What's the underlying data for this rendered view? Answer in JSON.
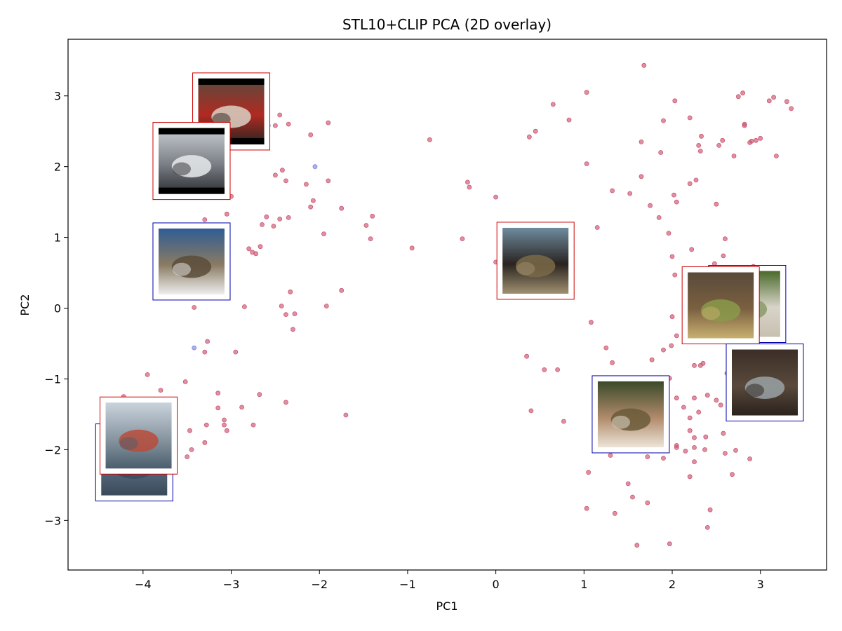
{
  "chart_data": {
    "type": "scatter",
    "title": "STL10+CLIP PCA (2D overlay)",
    "xlabel": "PC1",
    "ylabel": "PC2",
    "xlim": [
      -4.85,
      3.75
    ],
    "ylim": [
      -3.7,
      3.8
    ],
    "xticks": [
      -4,
      -3,
      -2,
      -1,
      0,
      1,
      2,
      3
    ],
    "yticks": [
      -3,
      -2,
      -1,
      0,
      1,
      2,
      3
    ],
    "grid": false,
    "colors": {
      "red": "#cc5470",
      "blue": "#7f86d8",
      "red_frame": "#cc0000",
      "blue_frame": "#0000aa"
    },
    "series": [
      {
        "color": "red",
        "points": [
          [
            -2.45,
            2.73
          ],
          [
            -2.35,
            2.6
          ],
          [
            -2.1,
            2.45
          ],
          [
            -1.9,
            2.62
          ],
          [
            -2.5,
            1.88
          ],
          [
            -2.42,
            1.95
          ],
          [
            -2.38,
            1.8
          ],
          [
            -2.15,
            1.75
          ],
          [
            -2.07,
            1.52
          ],
          [
            -2.1,
            1.43
          ],
          [
            -1.75,
            1.41
          ],
          [
            -1.9,
            1.8
          ],
          [
            -1.4,
            1.3
          ],
          [
            -1.47,
            1.17
          ],
          [
            -1.42,
            0.98
          ],
          [
            -1.95,
            1.05
          ],
          [
            -2.35,
            1.28
          ],
          [
            -2.45,
            1.26
          ],
          [
            -2.52,
            1.16
          ],
          [
            -2.6,
            1.29
          ],
          [
            -2.65,
            1.18
          ],
          [
            -2.8,
            0.84
          ],
          [
            -2.76,
            0.79
          ],
          [
            -2.72,
            0.77
          ],
          [
            -2.67,
            0.87
          ],
          [
            -2.85,
            0.02
          ],
          [
            -3.05,
            1.33
          ],
          [
            -3.3,
            1.25
          ],
          [
            -3.0,
            1.58
          ],
          [
            -3.7,
            1.67
          ],
          [
            -3.05,
            0.39
          ],
          [
            -3.42,
            0.01
          ],
          [
            -2.33,
            0.23
          ],
          [
            -2.43,
            0.03
          ],
          [
            -2.38,
            -0.09
          ],
          [
            -2.28,
            -0.08
          ],
          [
            -2.3,
            -0.3
          ],
          [
            -1.92,
            0.03
          ],
          [
            -1.75,
            0.25
          ],
          [
            -3.27,
            -0.47
          ],
          [
            -3.3,
            -0.62
          ],
          [
            -2.95,
            -0.62
          ],
          [
            -3.15,
            -1.2
          ],
          [
            -3.15,
            -1.41
          ],
          [
            -3.28,
            -1.65
          ],
          [
            -3.08,
            -1.58
          ],
          [
            -3.08,
            -1.65
          ],
          [
            -3.05,
            -1.73
          ],
          [
            -2.88,
            -1.4
          ],
          [
            -2.68,
            -1.22
          ],
          [
            -2.75,
            -1.65
          ],
          [
            -2.38,
            -1.33
          ],
          [
            -3.3,
            -1.9
          ],
          [
            -3.45,
            -2.0
          ],
          [
            -3.5,
            -2.1
          ],
          [
            -3.47,
            -1.73
          ],
          [
            -3.52,
            -1.04
          ],
          [
            -3.8,
            -1.16
          ],
          [
            -3.95,
            -0.94
          ],
          [
            -4.22,
            -1.25
          ],
          [
            -1.7,
            -1.51
          ],
          [
            -0.75,
            2.38
          ],
          [
            -0.95,
            0.85
          ],
          [
            -0.38,
            0.98
          ],
          [
            0.0,
            1.57
          ],
          [
            0.0,
            0.65
          ],
          [
            -0.32,
            1.78
          ],
          [
            -0.3,
            1.71
          ],
          [
            0.35,
            -0.68
          ],
          [
            0.4,
            -1.45
          ],
          [
            0.55,
            -0.87
          ],
          [
            0.7,
            -0.87
          ],
          [
            0.77,
            -1.6
          ],
          [
            0.38,
            2.42
          ],
          [
            0.45,
            2.5
          ],
          [
            0.65,
            2.88
          ],
          [
            0.83,
            2.66
          ],
          [
            1.03,
            3.05
          ],
          [
            1.03,
            2.04
          ],
          [
            1.15,
            1.14
          ],
          [
            1.08,
            -0.2
          ],
          [
            1.25,
            -0.56
          ],
          [
            1.32,
            -0.77
          ],
          [
            1.3,
            -2.08
          ],
          [
            1.35,
            -2.9
          ],
          [
            1.05,
            -2.32
          ],
          [
            1.03,
            -2.83
          ],
          [
            1.5,
            -2.48
          ],
          [
            1.55,
            -2.67
          ],
          [
            1.6,
            -3.35
          ],
          [
            1.72,
            -2.75
          ],
          [
            1.97,
            -3.33
          ],
          [
            1.68,
            3.43
          ],
          [
            1.65,
            2.35
          ],
          [
            1.65,
            1.86
          ],
          [
            1.75,
            1.45
          ],
          [
            1.32,
            1.66
          ],
          [
            1.52,
            1.62
          ],
          [
            1.85,
            1.28
          ],
          [
            1.87,
            2.2
          ],
          [
            1.9,
            2.65
          ],
          [
            2.03,
            2.93
          ],
          [
            1.96,
            1.06
          ],
          [
            2.0,
            0.73
          ],
          [
            2.02,
            1.6
          ],
          [
            2.05,
            1.5
          ],
          [
            2.03,
            0.47
          ],
          [
            2.0,
            -0.12
          ],
          [
            2.05,
            -0.39
          ],
          [
            1.99,
            -0.53
          ],
          [
            1.9,
            -0.59
          ],
          [
            1.97,
            -0.99
          ],
          [
            1.92,
            -1.17
          ],
          [
            2.05,
            -1.27
          ],
          [
            1.77,
            -0.73
          ],
          [
            1.72,
            -2.1
          ],
          [
            1.9,
            -2.12
          ],
          [
            2.05,
            -1.94
          ],
          [
            2.05,
            -1.97
          ],
          [
            2.13,
            -1.4
          ],
          [
            2.2,
            -1.55
          ],
          [
            2.2,
            -1.73
          ],
          [
            2.25,
            -1.83
          ],
          [
            2.25,
            -1.97
          ],
          [
            2.25,
            -2.17
          ],
          [
            2.2,
            -2.38
          ],
          [
            2.15,
            -2.02
          ],
          [
            2.2,
            2.69
          ],
          [
            2.2,
            1.76
          ],
          [
            2.27,
            1.81
          ],
          [
            2.33,
            2.43
          ],
          [
            2.3,
            2.3
          ],
          [
            2.32,
            2.22
          ],
          [
            2.22,
            0.83
          ],
          [
            2.35,
            -0.78
          ],
          [
            2.25,
            -0.81
          ],
          [
            2.32,
            -0.81
          ],
          [
            2.3,
            -1.47
          ],
          [
            2.25,
            -1.27
          ],
          [
            2.4,
            -1.23
          ],
          [
            2.38,
            -1.82
          ],
          [
            2.37,
            -2.0
          ],
          [
            2.4,
            -3.1
          ],
          [
            2.43,
            -2.85
          ],
          [
            2.5,
            -1.3
          ],
          [
            2.55,
            -1.37
          ],
          [
            2.58,
            -1.77
          ],
          [
            2.6,
            -2.05
          ],
          [
            2.53,
            2.3
          ],
          [
            2.57,
            2.37
          ],
          [
            2.5,
            1.47
          ],
          [
            2.6,
            0.98
          ],
          [
            2.58,
            0.74
          ],
          [
            2.48,
            0.63
          ],
          [
            2.62,
            -0.92
          ],
          [
            2.72,
            -2.01
          ],
          [
            2.68,
            -2.35
          ],
          [
            2.7,
            2.15
          ],
          [
            2.75,
            2.99
          ],
          [
            2.8,
            3.04
          ],
          [
            2.82,
            2.6
          ],
          [
            2.82,
            2.58
          ],
          [
            2.88,
            2.34
          ],
          [
            2.9,
            2.36
          ],
          [
            2.95,
            2.37
          ],
          [
            3.0,
            2.4
          ],
          [
            2.92,
            0.59
          ],
          [
            2.88,
            -2.13
          ],
          [
            3.1,
            2.93
          ],
          [
            3.15,
            2.98
          ],
          [
            3.18,
            2.15
          ],
          [
            3.3,
            2.92
          ],
          [
            3.35,
            2.82
          ],
          [
            -2.5,
            2.58
          ]
        ]
      },
      {
        "color": "blue",
        "points": [
          [
            -2.58,
            2.58
          ],
          [
            -2.05,
            2.0
          ],
          [
            -3.42,
            -0.56
          ],
          [
            2.55,
            0.32
          ],
          [
            2.85,
            0.12
          ]
        ]
      }
    ],
    "thumbnails": [
      {
        "subject": "red fire truck",
        "frame": "red",
        "x": -3.0,
        "y": 2.78,
        "palette": [
          "#5a4a3e",
          "#b02a22",
          "#d9d1c4",
          "#2a2420"
        ],
        "bars": true
      },
      {
        "subject": "silver car",
        "frame": "red",
        "x": -3.45,
        "y": 2.08,
        "palette": [
          "#c8ccd2",
          "#7a7f86",
          "#e8eaec",
          "#2c2e31"
        ],
        "bars": true
      },
      {
        "subject": "truck in desert",
        "frame": "blue",
        "x": -3.45,
        "y": 0.66,
        "palette": [
          "#2f5c93",
          "#8a7b63",
          "#5b4c3a",
          "#eeeeee"
        ],
        "bars": false
      },
      {
        "subject": "harbor",
        "frame": "blue",
        "x": -4.1,
        "y": -2.18,
        "palette": [
          "#b8c4cf",
          "#5a6e82",
          "#3b4f63",
          "#3a4a5a"
        ],
        "bars": false
      },
      {
        "subject": "airplane at harbor",
        "frame": "red",
        "x": -4.05,
        "y": -1.8,
        "palette": [
          "#c9d3dc",
          "#8896a1",
          "#b84c3a",
          "#4b5e6d"
        ],
        "bars": false
      },
      {
        "subject": "horse plowing",
        "frame": "red",
        "x": 0.45,
        "y": 0.67,
        "palette": [
          "#6e8b9e",
          "#2a2420",
          "#7a6a48",
          "#a09070"
        ],
        "bars": false
      },
      {
        "subject": "goat on grass",
        "frame": "blue",
        "x": 2.85,
        "y": 0.06,
        "palette": [
          "#4a6a2a",
          "#d8d4c8",
          "#8a9a6a",
          "#c8c0b0"
        ],
        "bars": false
      },
      {
        "subject": "deer in meadow",
        "frame": "red",
        "x": 2.55,
        "y": 0.04,
        "palette": [
          "#5a4a3a",
          "#7a6040",
          "#8a9a4a",
          "#c8b070"
        ],
        "bars": false
      },
      {
        "subject": "bear",
        "frame": "blue",
        "x": 3.05,
        "y": -1.05,
        "palette": [
          "#3a2e26",
          "#5a4a3c",
          "#9aa2a6",
          "#2a221c"
        ],
        "bars": false
      },
      {
        "subject": "elk",
        "frame": "blue",
        "x": 1.53,
        "y": -1.5,
        "palette": [
          "#3a4a2a",
          "#b08a6a",
          "#6a5a3a",
          "#ece4d8"
        ],
        "bars": false
      }
    ]
  }
}
